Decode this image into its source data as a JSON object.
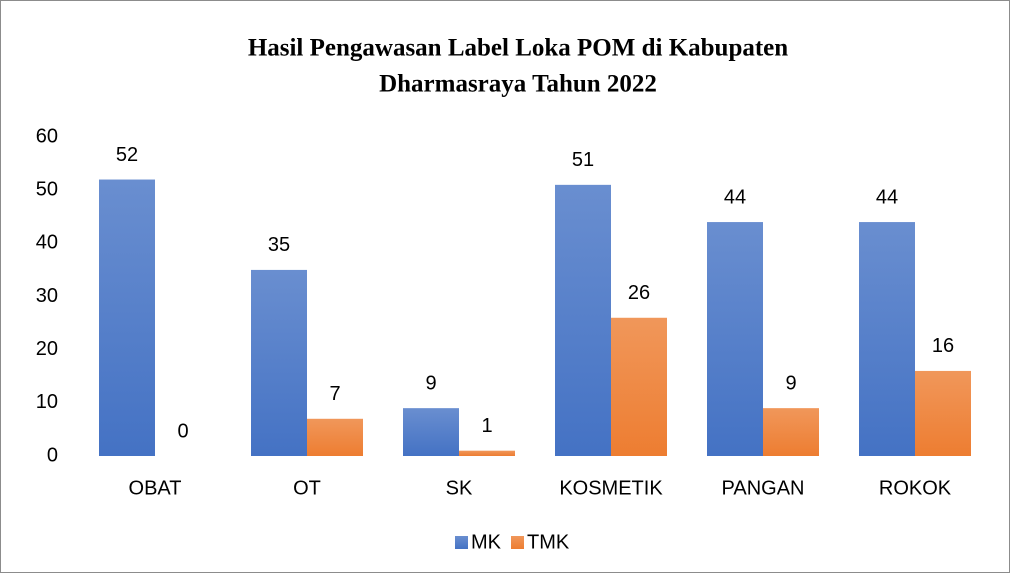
{
  "chart_data": {
    "type": "bar",
    "title": [
      "Hasil Pengawasan Label Loka POM di Kabupaten",
      "Dharmasraya Tahun 2022"
    ],
    "categories": [
      "OBAT",
      "OT",
      "SK",
      "KOSMETIK",
      "PANGAN",
      "ROKOK"
    ],
    "series": [
      {
        "name": "MK",
        "color": "#4472c4",
        "values": [
          52,
          35,
          9,
          51,
          44,
          44
        ]
      },
      {
        "name": "TMK",
        "color": "#ed7d31",
        "values": [
          0,
          7,
          1,
          26,
          9,
          16
        ]
      }
    ],
    "ylim": [
      0,
      60
    ],
    "yticks": [
      0,
      10,
      20,
      30,
      40,
      50,
      60
    ],
    "grid": false,
    "legend": "bottom"
  }
}
